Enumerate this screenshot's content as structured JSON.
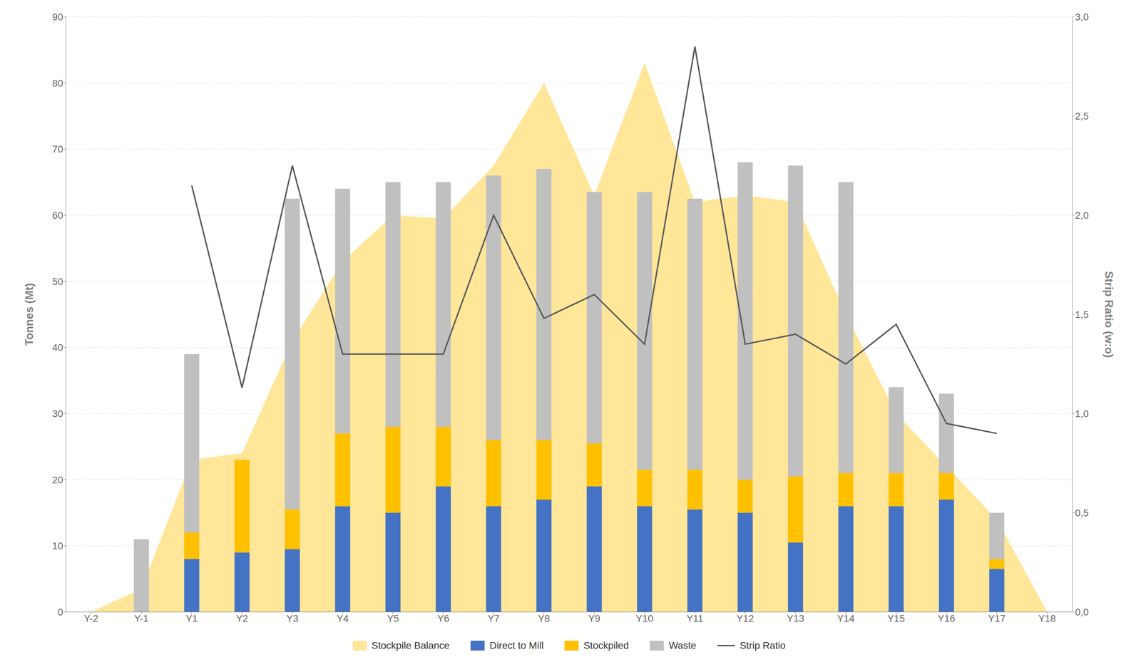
{
  "chart_data": {
    "type": "bar",
    "stacked": true,
    "grid": true,
    "legend": "bottom",
    "categories": [
      "Y-2",
      "Y-1",
      "Y1",
      "Y2",
      "Y3",
      "Y4",
      "Y5",
      "Y6",
      "Y7",
      "Y8",
      "Y9",
      "Y10",
      "Y11",
      "Y12",
      "Y13",
      "Y14",
      "Y15",
      "Y16",
      "Y17",
      "Y18"
    ],
    "ylabel": "Tonnes (Mt)",
    "y2label": "Strip Ratio (w:o)",
    "ylim": [
      0,
      90
    ],
    "yticks": [
      0,
      10,
      20,
      30,
      40,
      50,
      60,
      70,
      80,
      90
    ],
    "y2lim": [
      0,
      3.0
    ],
    "y2ticks": [
      {
        "value": 0.0,
        "label": "0,0"
      },
      {
        "value": 0.5,
        "label": "0,5"
      },
      {
        "value": 1.0,
        "label": "1,0"
      },
      {
        "value": 1.5,
        "label": "1,5"
      },
      {
        "value": 2.0,
        "label": "2,0"
      },
      {
        "value": 2.5,
        "label": "2,5"
      },
      {
        "value": 3.0,
        "label": "3,0"
      }
    ],
    "series": [
      {
        "name": "Stockpile Balance",
        "type": "area",
        "color": "#FFE699",
        "values": [
          0,
          3.5,
          23.0,
          24.0,
          41.0,
          53.0,
          60.0,
          59.5,
          67.5,
          80.0,
          63.0,
          83.0,
          62.0,
          63.0,
          62.0,
          45.0,
          30.0,
          22.0,
          14.0,
          0
        ]
      },
      {
        "name": "Direct to Mill",
        "type": "bar",
        "color": "#4472C4",
        "values": [
          0,
          0,
          8.0,
          9.0,
          9.5,
          16.0,
          15.0,
          19.0,
          16.0,
          17.0,
          19.0,
          16.0,
          15.5,
          15.0,
          10.5,
          16.0,
          16.0,
          17.0,
          6.5,
          0
        ]
      },
      {
        "name": "Stockpiled",
        "type": "bar",
        "color": "#FFC000",
        "values": [
          0,
          0,
          4.0,
          14.0,
          6.0,
          11.0,
          13.0,
          9.0,
          10.0,
          9.0,
          6.5,
          5.5,
          6.0,
          5.0,
          10.0,
          5.0,
          5.0,
          4.0,
          1.5,
          0
        ]
      },
      {
        "name": "Waste",
        "type": "bar",
        "color": "#C0C0C0",
        "values": [
          0,
          11.0,
          27.0,
          0,
          47.0,
          37.0,
          37.0,
          37.0,
          40.0,
          41.0,
          38.0,
          42.0,
          41.0,
          48.0,
          47.0,
          44.0,
          13.0,
          12.0,
          7.0,
          0
        ]
      },
      {
        "name": "Strip Ratio",
        "type": "line",
        "axis": "y2",
        "color": "#595959",
        "values": [
          null,
          null,
          2.15,
          1.13,
          2.25,
          1.3,
          1.3,
          1.3,
          2.0,
          1.48,
          1.6,
          1.35,
          2.85,
          1.35,
          1.4,
          1.25,
          1.45,
          0.95,
          0.9,
          null
        ]
      }
    ]
  }
}
